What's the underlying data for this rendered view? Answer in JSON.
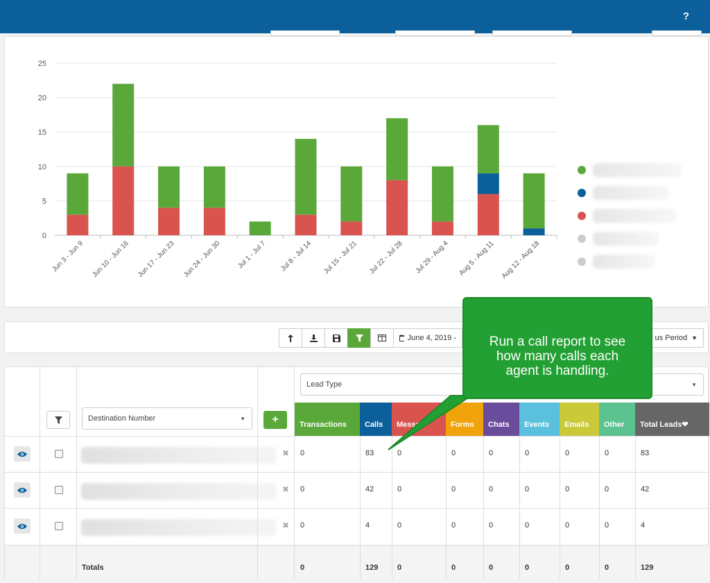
{
  "header": {
    "help_label": "?"
  },
  "chart_data": {
    "type": "bar",
    "stacked": true,
    "categories": [
      "Jun 3 - Jun 9",
      "Jun 10 - Jun 16",
      "Jun 17 - Jun 23",
      "Jun 24 - Jun 30",
      "Jul 1 - Jul 7",
      "Jul 8 - Jul 14",
      "Jul 15 - Jul 21",
      "Jul 22 - Jul 28",
      "Jul 29 - Aug 4",
      "Aug 5 - Aug 11",
      "Aug 12 - Aug 18"
    ],
    "series": [
      {
        "color": "#d9534f",
        "values": [
          3,
          10,
          4,
          4,
          0,
          3,
          2,
          8,
          2,
          6,
          0
        ]
      },
      {
        "color": "#0b5f9a",
        "values": [
          0,
          0,
          0,
          0,
          0,
          0,
          0,
          0,
          0,
          3,
          1
        ]
      },
      {
        "color": "#5aa839",
        "values": [
          6,
          12,
          6,
          6,
          2,
          11,
          8,
          9,
          8,
          7,
          8
        ]
      }
    ],
    "yticks": [
      0,
      5,
      10,
      15,
      20,
      25
    ],
    "ylim": [
      0,
      25
    ],
    "grid": true,
    "legend_position": "right",
    "legend_colors": [
      "#5aa839",
      "#0b5f9a",
      "#d9534f",
      "#cccccc",
      "#cccccc"
    ]
  },
  "toolbar": {
    "date_label": "June 4, 2019 -",
    "period_label": "us Period"
  },
  "table": {
    "destination_placeholder": "Destination Number",
    "lead_type_placeholder": "Lead Type",
    "add_label": "+",
    "columns": [
      {
        "label": "Transactions",
        "color": "#5aa839"
      },
      {
        "label": "Calls",
        "color": "#0b5f9a"
      },
      {
        "label": "Messa",
        "color": "#d9534f"
      },
      {
        "label": "Forms",
        "color": "#f0a30a"
      },
      {
        "label": "Chats",
        "color": "#6a4c9c"
      },
      {
        "label": "Events",
        "color": "#5bc0de"
      },
      {
        "label": "Emails",
        "color": "#c9c93a"
      },
      {
        "label": "Other",
        "color": "#5cc28f"
      },
      {
        "label": "Total Leads",
        "color": "#666666"
      }
    ],
    "rows": [
      [
        "0",
        "83",
        "0",
        "0",
        "0",
        "0",
        "0",
        "0",
        "83"
      ],
      [
        "0",
        "42",
        "0",
        "0",
        "0",
        "0",
        "0",
        "0",
        "42"
      ],
      [
        "0",
        "4",
        "0",
        "0",
        "0",
        "0",
        "0",
        "0",
        "4"
      ]
    ],
    "totals_label": "Totals",
    "totals": [
      "0",
      "129",
      "0",
      "0",
      "0",
      "0",
      "0",
      "0",
      "129"
    ]
  },
  "callout": {
    "text": "Run a call report to see\nhow many calls each\nagent is handling."
  }
}
